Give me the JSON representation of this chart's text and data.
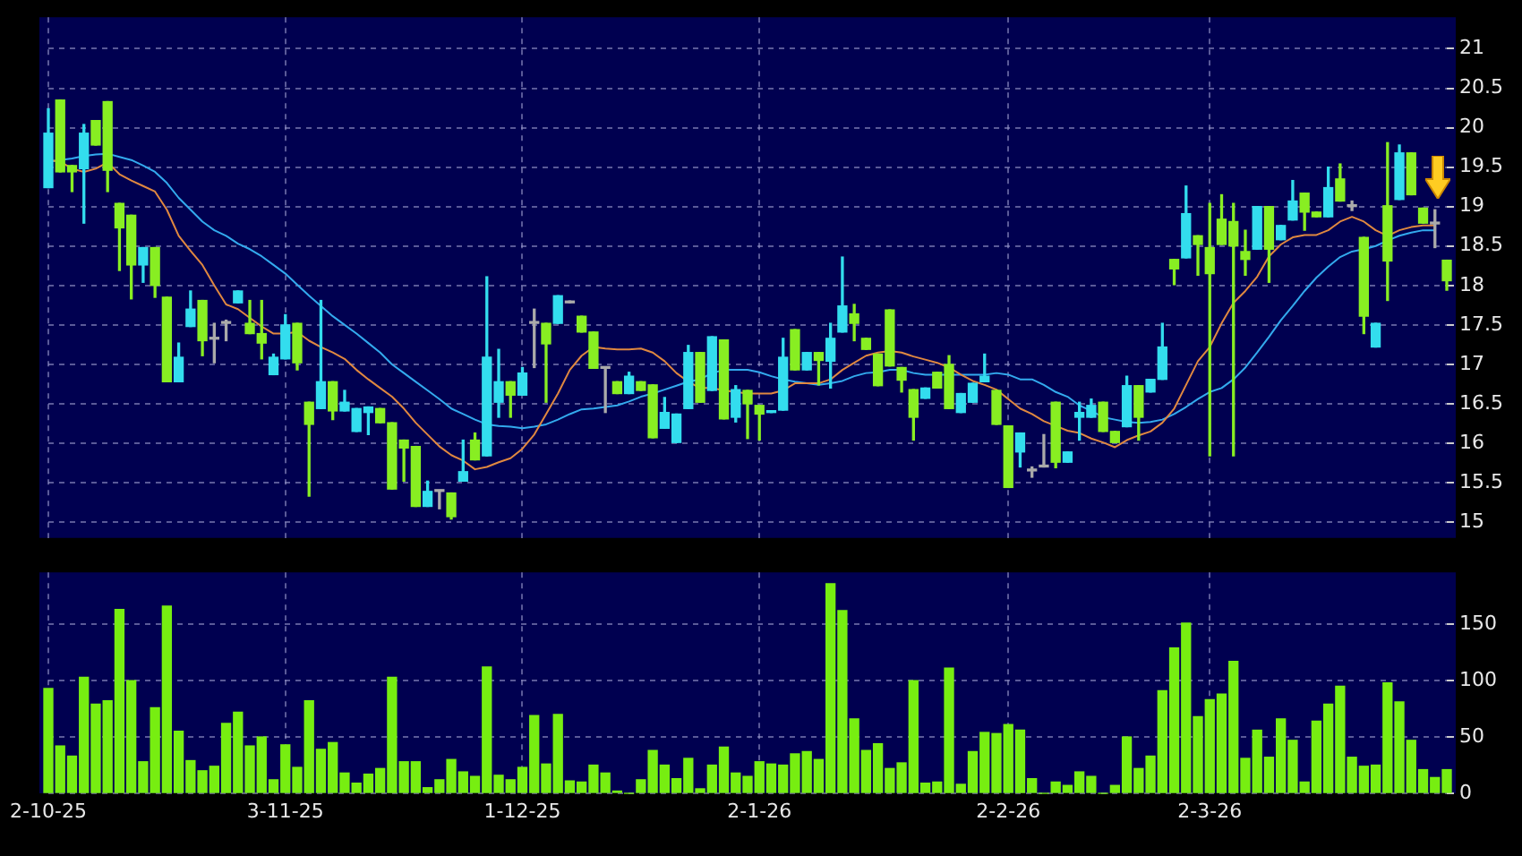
{
  "chart_data": [
    {
      "type": "candlestick",
      "categories": [
        "2-10-25",
        null,
        null,
        null,
        null,
        null,
        null,
        null,
        null,
        null,
        null,
        null,
        null,
        null,
        null,
        null,
        null,
        null,
        null,
        null,
        "3-11-25",
        null,
        null,
        null,
        null,
        null,
        null,
        null,
        null,
        null,
        null,
        null,
        null,
        null,
        null,
        null,
        null,
        null,
        null,
        null,
        "1-12-25",
        null,
        null,
        null,
        null,
        null,
        null,
        null,
        null,
        null,
        null,
        null,
        null,
        null,
        null,
        null,
        null,
        null,
        null,
        null,
        "2-1-26",
        null,
        null,
        null,
        null,
        null,
        null,
        null,
        null,
        null,
        null,
        null,
        null,
        null,
        null,
        null,
        null,
        null,
        null,
        null,
        null,
        "2-2-26",
        null,
        null,
        null,
        null,
        null,
        null,
        null,
        null,
        null,
        null,
        null,
        null,
        null,
        null,
        null,
        null,
        "2-3-26",
        null,
        null,
        null,
        null,
        null,
        null,
        null,
        null,
        null,
        null,
        null,
        null,
        null,
        null,
        null,
        null,
        null,
        null,
        null,
        null
      ],
      "ohlc": [
        [
          19.24,
          20.24,
          19.24,
          19.93
        ],
        [
          20.35,
          20.35,
          19.44,
          19.44
        ],
        [
          19.52,
          19.52,
          19.19,
          19.44
        ],
        [
          19.48,
          20.04,
          18.79,
          19.93
        ],
        [
          20.09,
          20.09,
          19.78,
          19.78
        ],
        [
          20.33,
          20.33,
          19.19,
          19.46
        ],
        [
          19.04,
          19.04,
          18.19,
          18.73
        ],
        [
          18.89,
          18.89,
          17.83,
          18.26
        ],
        [
          18.26,
          18.48,
          18.04,
          18.48
        ],
        [
          18.48,
          18.48,
          17.85,
          18.0
        ],
        [
          17.85,
          17.85,
          16.78,
          16.78
        ],
        [
          16.78,
          17.27,
          16.78,
          17.09
        ],
        [
          17.48,
          17.93,
          17.48,
          17.7
        ],
        [
          17.81,
          17.81,
          17.11,
          17.3
        ],
        [
          17.32,
          17.52,
          17.02,
          17.32
        ],
        [
          17.52,
          17.56,
          17.3,
          17.52
        ],
        [
          17.78,
          17.93,
          17.78,
          17.93
        ],
        [
          17.52,
          17.81,
          17.39,
          17.39
        ],
        [
          17.39,
          17.81,
          17.07,
          17.27
        ],
        [
          16.87,
          17.13,
          16.87,
          17.09
        ],
        [
          17.07,
          17.63,
          17.07,
          17.5
        ],
        [
          17.52,
          17.52,
          16.93,
          17.02
        ],
        [
          16.52,
          16.52,
          15.33,
          16.24
        ],
        [
          16.44,
          17.81,
          16.44,
          16.78
        ],
        [
          16.78,
          16.78,
          16.3,
          16.41
        ],
        [
          16.41,
          16.67,
          16.41,
          16.52
        ],
        [
          16.15,
          16.44,
          16.15,
          16.44
        ],
        [
          16.39,
          16.46,
          16.11,
          16.46
        ],
        [
          16.44,
          16.44,
          16.26,
          16.26
        ],
        [
          16.26,
          16.26,
          15.42,
          15.42
        ],
        [
          16.04,
          16.04,
          15.52,
          15.94
        ],
        [
          15.96,
          15.96,
          15.2,
          15.2
        ],
        [
          15.2,
          15.52,
          15.2,
          15.39
        ],
        [
          15.39,
          15.39,
          15.17,
          15.39
        ],
        [
          15.37,
          15.37,
          15.04,
          15.07
        ],
        [
          15.52,
          16.04,
          15.52,
          15.64
        ],
        [
          16.04,
          16.13,
          15.79,
          15.79
        ],
        [
          15.84,
          18.11,
          15.84,
          17.09
        ],
        [
          16.52,
          17.19,
          16.33,
          16.78
        ],
        [
          16.78,
          16.78,
          16.33,
          16.61
        ],
        [
          16.61,
          16.96,
          16.61,
          16.89
        ],
        [
          17.52,
          17.7,
          16.96,
          17.52
        ],
        [
          17.52,
          17.52,
          16.52,
          17.26
        ],
        [
          17.52,
          17.87,
          17.52,
          17.87
        ],
        [
          17.78,
          17.78,
          17.78,
          17.78
        ],
        [
          17.61,
          17.61,
          17.41,
          17.41
        ],
        [
          17.41,
          17.41,
          16.95,
          16.95
        ],
        [
          16.95,
          16.95,
          16.39,
          16.95
        ],
        [
          16.78,
          16.78,
          16.63,
          16.63
        ],
        [
          16.63,
          16.9,
          16.63,
          16.85
        ],
        [
          16.78,
          16.78,
          16.67,
          16.67
        ],
        [
          16.74,
          16.74,
          16.07,
          16.07
        ],
        [
          16.19,
          16.58,
          16.19,
          16.39
        ],
        [
          16.01,
          16.37,
          16.01,
          16.37
        ],
        [
          16.44,
          17.24,
          16.44,
          17.15
        ],
        [
          17.15,
          17.15,
          16.52,
          16.52
        ],
        [
          16.67,
          17.35,
          16.67,
          17.35
        ],
        [
          17.31,
          17.31,
          16.31,
          16.31
        ],
        [
          16.33,
          16.73,
          16.27,
          16.68
        ],
        [
          16.67,
          16.67,
          16.06,
          16.5
        ],
        [
          16.48,
          16.48,
          16.04,
          16.37
        ],
        [
          16.39,
          16.41,
          16.39,
          16.41
        ],
        [
          16.42,
          17.33,
          16.42,
          17.09
        ],
        [
          17.44,
          17.44,
          16.93,
          16.93
        ],
        [
          16.93,
          17.15,
          16.93,
          17.15
        ],
        [
          17.15,
          17.15,
          16.74,
          17.05
        ],
        [
          17.04,
          17.52,
          16.7,
          17.33
        ],
        [
          17.41,
          18.36,
          17.41,
          17.74
        ],
        [
          17.64,
          17.76,
          17.3,
          17.52
        ],
        [
          17.33,
          17.33,
          17.19,
          17.19
        ],
        [
          17.13,
          17.13,
          16.73,
          16.73
        ],
        [
          17.69,
          17.69,
          16.98,
          16.98
        ],
        [
          16.96,
          16.96,
          16.65,
          16.8
        ],
        [
          16.68,
          16.68,
          16.04,
          16.33
        ],
        [
          16.57,
          16.7,
          16.57,
          16.7
        ],
        [
          16.9,
          16.9,
          16.7,
          16.7
        ],
        [
          17.0,
          17.11,
          16.44,
          16.44
        ],
        [
          16.39,
          16.63,
          16.39,
          16.63
        ],
        [
          16.52,
          16.76,
          16.52,
          16.76
        ],
        [
          16.78,
          17.13,
          16.78,
          16.85
        ],
        [
          16.67,
          16.67,
          16.24,
          16.24
        ],
        [
          16.22,
          16.22,
          15.44,
          15.44
        ],
        [
          15.89,
          16.13,
          15.7,
          16.13
        ],
        [
          15.65,
          15.7,
          15.57,
          15.65
        ],
        [
          15.7,
          16.11,
          15.7,
          15.7
        ],
        [
          16.52,
          16.52,
          15.69,
          15.76
        ],
        [
          15.76,
          15.89,
          15.76,
          15.89
        ],
        [
          16.33,
          16.52,
          16.04,
          16.39
        ],
        [
          16.33,
          16.56,
          16.33,
          16.48
        ],
        [
          16.52,
          16.52,
          16.15,
          16.15
        ],
        [
          16.15,
          16.15,
          16.01,
          16.01
        ],
        [
          16.21,
          16.85,
          16.21,
          16.73
        ],
        [
          16.73,
          16.73,
          16.04,
          16.33
        ],
        [
          16.65,
          16.81,
          16.65,
          16.81
        ],
        [
          16.81,
          17.52,
          16.81,
          17.22
        ],
        [
          18.33,
          18.33,
          18.01,
          18.21
        ],
        [
          18.35,
          19.26,
          18.35,
          18.91
        ],
        [
          18.63,
          18.63,
          18.13,
          18.52
        ],
        [
          18.48,
          19.04,
          15.84,
          18.15
        ],
        [
          18.84,
          19.15,
          18.52,
          18.52
        ],
        [
          18.81,
          19.04,
          15.84,
          18.5
        ],
        [
          18.43,
          18.7,
          18.13,
          18.33
        ],
        [
          18.46,
          19.0,
          18.46,
          19.0
        ],
        [
          19.0,
          19.0,
          18.04,
          18.46
        ],
        [
          18.58,
          18.76,
          18.58,
          18.76
        ],
        [
          18.83,
          19.33,
          18.83,
          19.07
        ],
        [
          19.17,
          19.17,
          18.7,
          18.93
        ],
        [
          18.93,
          18.93,
          18.87,
          18.87
        ],
        [
          18.87,
          19.5,
          18.87,
          19.24
        ],
        [
          19.35,
          19.54,
          19.07,
          19.07
        ],
        [
          19.0,
          19.07,
          18.95,
          19.0
        ],
        [
          18.61,
          18.61,
          17.39,
          17.61
        ],
        [
          17.22,
          17.52,
          17.22,
          17.52
        ],
        [
          19.01,
          19.81,
          17.81,
          18.31
        ],
        [
          19.09,
          19.78,
          19.09,
          19.68
        ],
        [
          19.68,
          19.68,
          19.15,
          19.15
        ],
        [
          18.98,
          18.98,
          18.79,
          18.79
        ],
        [
          18.78,
          18.96,
          18.48,
          18.78
        ],
        [
          18.32,
          18.32,
          17.94,
          18.06
        ]
      ],
      "colors": [
        "#33ddee",
        "#88ee22",
        "#88ee22",
        "#33ddee",
        "#88ee22",
        "#88ee22",
        "#88ee22",
        "#88ee22",
        "#33ddee",
        "#88ee22",
        "#88ee22",
        "#33ddee",
        "#33ddee",
        "#88ee22",
        "#aaaaaa",
        "#aaaaaa",
        "#33ddee",
        "#88ee22",
        "#88ee22",
        "#33ddee",
        "#33ddee",
        "#88ee22",
        "#88ee22",
        "#33ddee",
        "#88ee22",
        "#33ddee",
        "#33ddee",
        "#33ddee",
        "#88ee22",
        "#88ee22",
        "#88ee22",
        "#88ee22",
        "#33ddee",
        "#aaaaaa",
        "#88ee22",
        "#33ddee",
        "#88ee22",
        "#33ddee",
        "#33ddee",
        "#88ee22",
        "#33ddee",
        "#aaaaaa",
        "#88ee22",
        "#33ddee",
        "#aaaaaa",
        "#88ee22",
        "#88ee22",
        "#aaaaaa",
        "#88ee22",
        "#33ddee",
        "#88ee22",
        "#88ee22",
        "#33ddee",
        "#33ddee",
        "#33ddee",
        "#88ee22",
        "#33ddee",
        "#88ee22",
        "#33ddee",
        "#88ee22",
        "#88ee22",
        "#33ddee",
        "#33ddee",
        "#88ee22",
        "#33ddee",
        "#88ee22",
        "#33ddee",
        "#33ddee",
        "#88ee22",
        "#88ee22",
        "#88ee22",
        "#88ee22",
        "#88ee22",
        "#88ee22",
        "#33ddee",
        "#88ee22",
        "#88ee22",
        "#33ddee",
        "#33ddee",
        "#33ddee",
        "#88ee22",
        "#88ee22",
        "#33ddee",
        "#aaaaaa",
        "#aaaaaa",
        "#88ee22",
        "#33ddee",
        "#33ddee",
        "#33ddee",
        "#88ee22",
        "#88ee22",
        "#33ddee",
        "#88ee22",
        "#33ddee",
        "#33ddee",
        "#88ee22",
        "#33ddee",
        "#88ee22",
        "#88ee22",
        "#88ee22",
        "#88ee22",
        "#88ee22",
        "#33ddee",
        "#88ee22",
        "#33ddee",
        "#33ddee",
        "#88ee22",
        "#88ee22",
        "#33ddee",
        "#88ee22",
        "#aaaaaa",
        "#88ee22",
        "#33ddee",
        "#88ee22",
        "#33ddee",
        "#88ee22",
        "#88ee22",
        "#aaaaaa",
        "#88ee22"
      ],
      "series": [
        {
          "type": "line",
          "color": "#e08840",
          "values": [
            19.59,
            19.57,
            19.48,
            19.44,
            19.48,
            19.56,
            19.41,
            19.33,
            19.26,
            19.19,
            18.96,
            18.63,
            18.44,
            18.26,
            18.0,
            17.76,
            17.7,
            17.59,
            17.48,
            17.39,
            17.39,
            17.41,
            17.3,
            17.22,
            17.15,
            17.07,
            16.93,
            16.81,
            16.7,
            16.59,
            16.44,
            16.26,
            16.11,
            15.96,
            15.85,
            15.78,
            15.67,
            15.7,
            15.76,
            15.81,
            15.93,
            16.11,
            16.37,
            16.63,
            16.93,
            17.11,
            17.22,
            17.2,
            17.19,
            17.19,
            17.2,
            17.15,
            17.04,
            16.89,
            16.78,
            16.7,
            16.7,
            16.67,
            16.65,
            16.63,
            16.63,
            16.63,
            16.67,
            16.76,
            16.76,
            16.76,
            16.81,
            16.93,
            17.02,
            17.11,
            17.15,
            17.17,
            17.15,
            17.1,
            17.06,
            17.02,
            16.96,
            16.87,
            16.79,
            16.74,
            16.68,
            16.56,
            16.44,
            16.37,
            16.28,
            16.22,
            16.16,
            16.13,
            16.06,
            16.01,
            15.95,
            16.04,
            16.1,
            16.15,
            16.26,
            16.44,
            16.74,
            17.04,
            17.22,
            17.52,
            17.78,
            17.93,
            18.11,
            18.37,
            18.52,
            18.61,
            18.64,
            18.64,
            18.7,
            18.81,
            18.87,
            18.81,
            18.7,
            18.63,
            18.7,
            18.74,
            18.76,
            18.76,
            null
          ]
        },
        {
          "type": "line",
          "color": "#33aaee",
          "values": [
            19.57,
            19.59,
            19.61,
            19.64,
            19.66,
            19.67,
            19.63,
            19.59,
            19.52,
            19.44,
            19.3,
            19.11,
            18.96,
            18.81,
            18.7,
            18.63,
            18.53,
            18.46,
            18.37,
            18.26,
            18.15,
            18.01,
            17.87,
            17.74,
            17.61,
            17.5,
            17.39,
            17.27,
            17.15,
            17.0,
            16.89,
            16.78,
            16.67,
            16.56,
            16.44,
            16.37,
            16.3,
            16.24,
            16.22,
            16.21,
            16.19,
            16.21,
            16.24,
            16.3,
            16.37,
            16.43,
            16.44,
            16.46,
            16.48,
            16.53,
            16.59,
            16.63,
            16.68,
            16.73,
            16.78,
            16.81,
            16.89,
            16.93,
            16.93,
            16.93,
            16.9,
            16.85,
            16.81,
            16.78,
            16.76,
            16.74,
            16.76,
            16.79,
            16.85,
            16.89,
            16.9,
            16.93,
            16.93,
            16.89,
            16.87,
            16.87,
            16.87,
            16.87,
            16.87,
            16.87,
            16.89,
            16.87,
            16.81,
            16.81,
            16.74,
            16.65,
            16.59,
            16.48,
            16.41,
            16.33,
            16.3,
            16.27,
            16.26,
            16.27,
            16.3,
            16.37,
            16.46,
            16.56,
            16.65,
            16.7,
            16.81,
            16.96,
            17.15,
            17.35,
            17.56,
            17.74,
            17.93,
            18.1,
            18.24,
            18.36,
            18.43,
            18.46,
            18.5,
            18.57,
            18.63,
            18.67,
            18.7,
            18.7,
            null
          ]
        }
      ],
      "ylim": [
        14.8,
        21.4
      ],
      "yticks": [
        15,
        15.5,
        16,
        16.5,
        17,
        17.5,
        18,
        18.5,
        19,
        19.5,
        20,
        20.5,
        21
      ],
      "grid": true,
      "tick_labels": "y"
    },
    {
      "type": "bar",
      "values": [
        93,
        42,
        33,
        103,
        79,
        82,
        163,
        100,
        28,
        76,
        166,
        55,
        29,
        20,
        24,
        62,
        72,
        42,
        50,
        12,
        43,
        23,
        82,
        39,
        45,
        18,
        9,
        17,
        22,
        103,
        28,
        28,
        5,
        12,
        30,
        19,
        15,
        112,
        16,
        12,
        23,
        69,
        26,
        70,
        11,
        10,
        25,
        18,
        2,
        0,
        12,
        38,
        25,
        13,
        31,
        4,
        25,
        41,
        18,
        15,
        28,
        26,
        25,
        35,
        37,
        30,
        186,
        162,
        66,
        38,
        44,
        22,
        27,
        100,
        9,
        10,
        111,
        8,
        37,
        54,
        53,
        61,
        56,
        13,
        0,
        10,
        7,
        19,
        15,
        0,
        7,
        50,
        22,
        33,
        91,
        129,
        151,
        68,
        83,
        88,
        117,
        31,
        56,
        32,
        66,
        47,
        10,
        64,
        79,
        95,
        32,
        24,
        25,
        98,
        81,
        47,
        21,
        14,
        21
      ],
      "color": "#77ee11",
      "ylim": [
        0,
        196
      ],
      "yticks": [
        0,
        50,
        100,
        150
      ],
      "grid": true
    }
  ]
}
